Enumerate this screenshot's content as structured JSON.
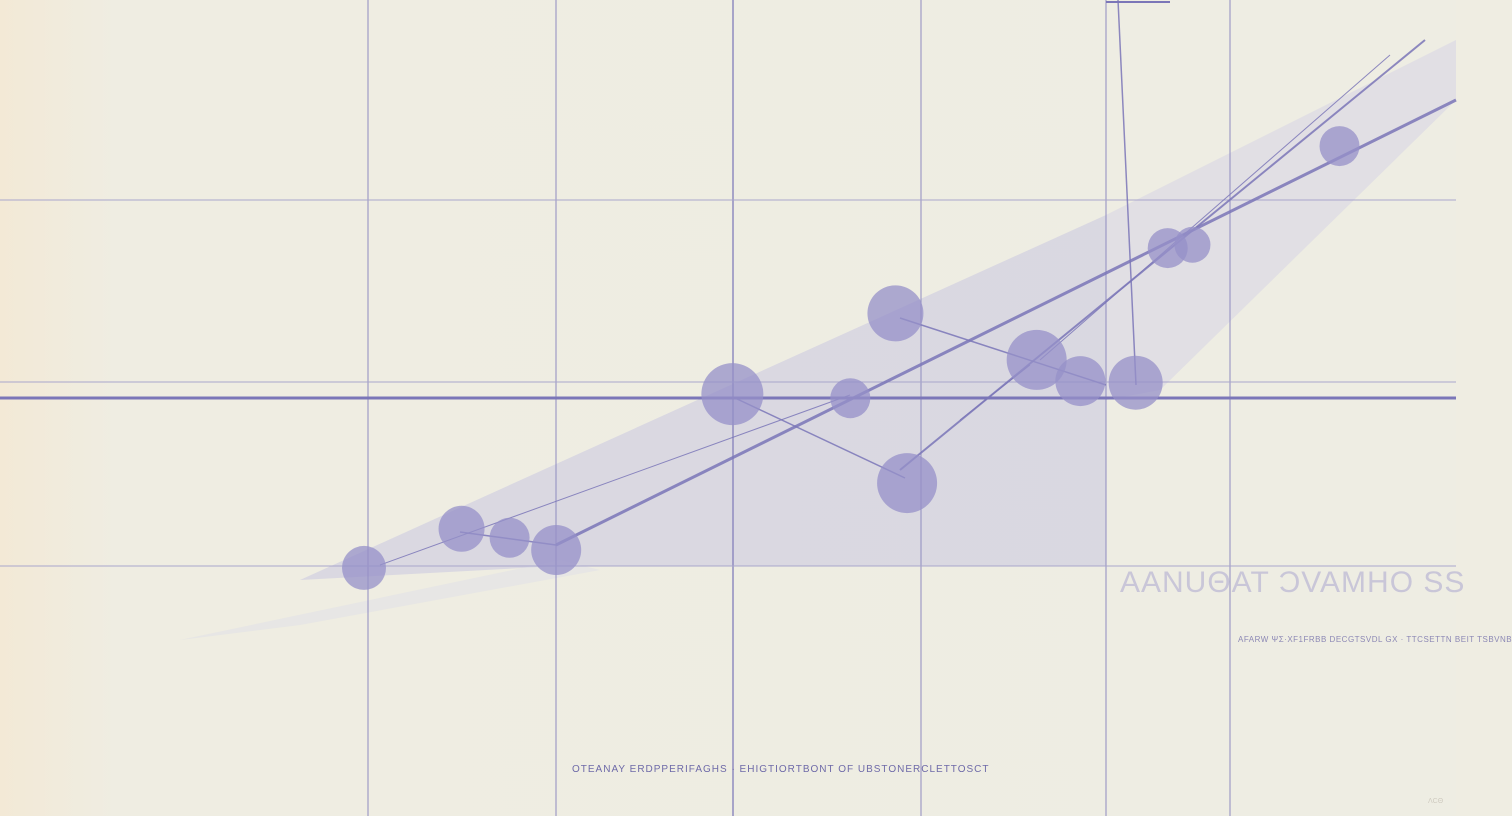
{
  "chart_data": {
    "type": "scatter",
    "title": "",
    "xlabel": "",
    "ylabel": "",
    "xlim": [
      0,
      100
    ],
    "ylim": [
      0,
      100
    ],
    "grid": true,
    "legend": "none",
    "point_color": "#9590c8",
    "line_color": "#7b76b8",
    "points": [
      {
        "x": 25.0,
        "y": 30.4,
        "size": 22
      },
      {
        "x": 31.7,
        "y": 35.2,
        "size": 23
      },
      {
        "x": 35.0,
        "y": 34.1,
        "size": 20
      },
      {
        "x": 38.2,
        "y": 32.6,
        "size": 25
      },
      {
        "x": 50.3,
        "y": 51.7,
        "size": 31
      },
      {
        "x": 58.4,
        "y": 51.2,
        "size": 20
      },
      {
        "x": 61.5,
        "y": 61.6,
        "size": 28
      },
      {
        "x": 62.3,
        "y": 40.8,
        "size": 30
      },
      {
        "x": 71.2,
        "y": 55.9,
        "size": 30
      },
      {
        "x": 74.2,
        "y": 53.3,
        "size": 25
      },
      {
        "x": 78.0,
        "y": 53.1,
        "size": 27
      },
      {
        "x": 80.2,
        "y": 69.6,
        "size": 20
      },
      {
        "x": 81.9,
        "y": 70.0,
        "size": 18
      },
      {
        "x": 92.0,
        "y": 82.1,
        "size": 20
      }
    ]
  },
  "texts": {
    "watermark": "AANUΘAT ƆVAMHO SS",
    "subtitle": "AFARW ΨΣ·XF1FRBB DECGTSVDL GX · TTCSETTN BEIT TSBVNB",
    "caption": "OTEANAY ERDPPERIFAGHS · EHIGTIORTBONT OF UBSTONERCLETTOSCT",
    "corner": "ΛCΘ"
  }
}
